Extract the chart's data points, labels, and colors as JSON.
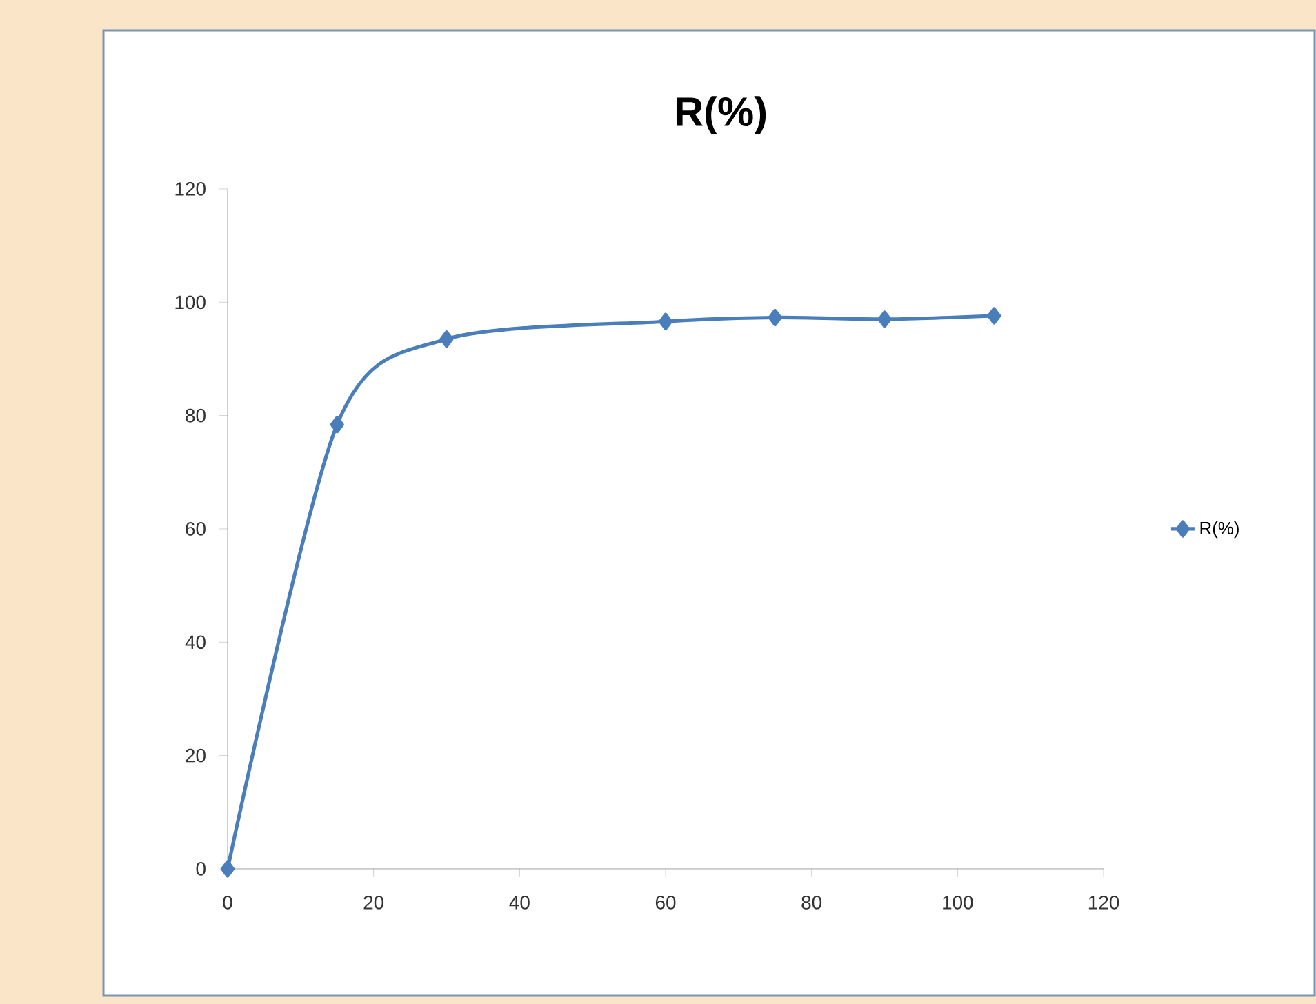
{
  "chart_data": {
    "type": "line",
    "title": "R(%)",
    "x": [
      0,
      15,
      30,
      60,
      75,
      90,
      105
    ],
    "series": [
      {
        "name": "R(%)",
        "color": "#4a7ebb",
        "values": [
          0,
          78.4,
          93.5,
          96.6,
          97.3,
          97.0,
          97.6
        ]
      }
    ],
    "xlim": [
      0,
      120
    ],
    "ylim": [
      0,
      120
    ],
    "xticks": [
      0,
      20,
      40,
      60,
      80,
      100,
      120
    ],
    "yticks": [
      0,
      20,
      40,
      60,
      80,
      100,
      120
    ],
    "legend": "right",
    "marker": "diamond"
  }
}
